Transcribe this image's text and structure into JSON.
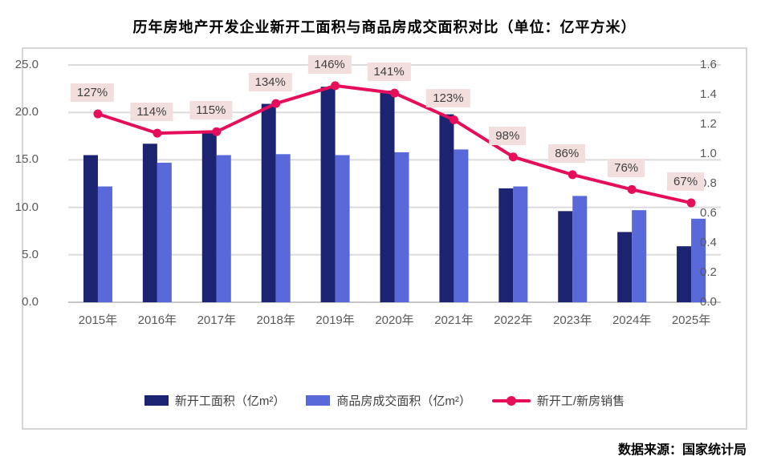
{
  "title": "历年房地产开发企业新开工面积与商品房成交面积对比（单位：亿平方米）",
  "source": "数据来源：国家统计局",
  "colors": {
    "bar_new_starts": "#1c2472",
    "bar_sales": "#5969d9",
    "ratio_line": "#e60e5a",
    "label_bg": "#f2dedd",
    "gridline": "#dbdbdb",
    "baseline": "#c6c6c6",
    "axis_text": "#595959"
  },
  "chart_data": {
    "type": "bar",
    "subtype": "grouped-bars-with-line-overlay",
    "title": "历年房地产开发企业新开工面积与商品房成交面积对比（单位：亿平方米）",
    "categories": [
      "2015年",
      "2016年",
      "2017年",
      "2018年",
      "2019年",
      "2020年",
      "2021年",
      "2022年",
      "2023年",
      "2024年",
      "2025年"
    ],
    "series": [
      {
        "name": "新开工面积（亿m²）",
        "type": "bar",
        "axis": "left",
        "values": [
          15.5,
          16.7,
          17.8,
          20.9,
          22.7,
          22.3,
          19.8,
          12.0,
          9.6,
          7.4,
          5.9
        ]
      },
      {
        "name": "商品房成交面积（亿m²）",
        "type": "bar",
        "axis": "left",
        "values": [
          12.2,
          14.7,
          15.5,
          15.6,
          15.5,
          15.8,
          16.1,
          12.2,
          11.2,
          9.7,
          8.8
        ]
      },
      {
        "name": "新开工/新房销售",
        "type": "line",
        "axis": "right",
        "values": [
          1.27,
          1.14,
          1.15,
          1.34,
          1.46,
          1.41,
          1.23,
          0.98,
          0.86,
          0.76,
          0.67
        ],
        "point_labels": [
          "127%",
          "114%",
          "115%",
          "134%",
          "146%",
          "141%",
          "123%",
          "98%",
          "86%",
          "76%",
          "67%"
        ]
      }
    ],
    "left_axis": {
      "min": 0,
      "max": 25,
      "step": 5,
      "ticks": [
        "0.0",
        "5.0",
        "10.0",
        "15.0",
        "20.0",
        "25.0"
      ]
    },
    "right_axis": {
      "min": 0,
      "max": 1.6,
      "step": 0.2,
      "ticks": [
        "0.0",
        "0.2",
        "0.4",
        "0.6",
        "0.8",
        "1.0",
        "1.2",
        "1.4",
        "1.6"
      ]
    },
    "grid": true,
    "legend_position": "bottom",
    "xlabel": "",
    "ylabel": ""
  }
}
